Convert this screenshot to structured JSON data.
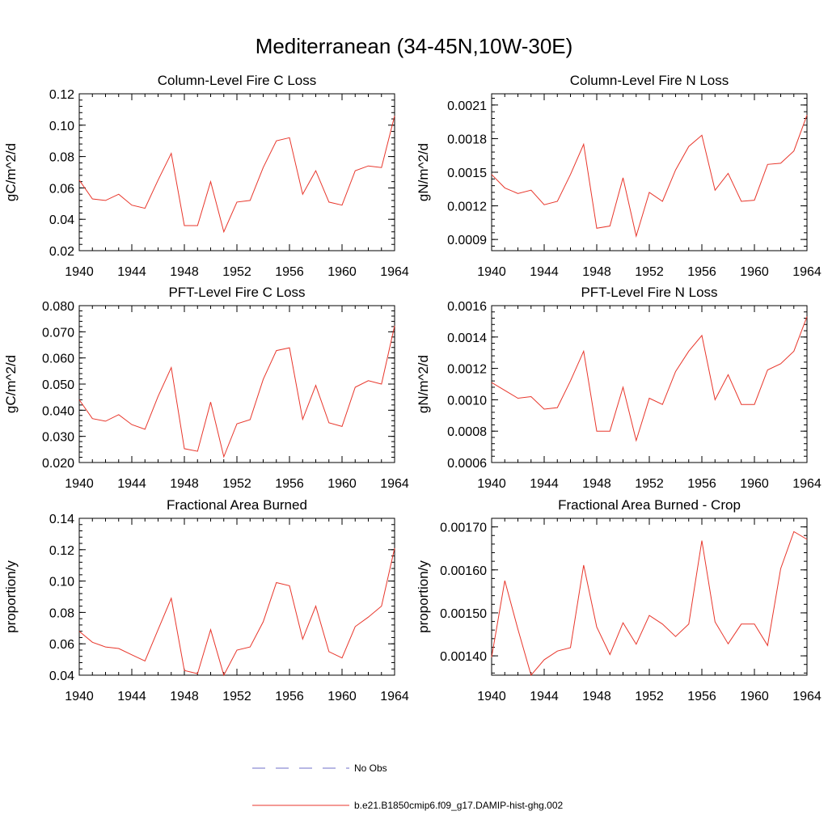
{
  "figure_title": "Mediterranean (34-45N,10W-30E)",
  "legend": {
    "items": [
      {
        "label": "No Obs",
        "color": "#6f6fc9",
        "style": "dashed"
      },
      {
        "label": "b.e21.B1850cmip6.f09_g17.DAMIP-hist-ghg.002",
        "color": "#e8362b",
        "style": "solid"
      }
    ]
  },
  "chart_data": [
    {
      "type": "line",
      "title": "Column-Level Fire C Loss",
      "ylabel": "gC/m^2/d",
      "xlim": [
        1940,
        1964
      ],
      "ylim": [
        0.02,
        0.12
      ],
      "xticks": [
        1940,
        1944,
        1948,
        1952,
        1956,
        1960,
        1964
      ],
      "xtick_labels": [
        "1940",
        "1944",
        "1948",
        "1952",
        "1956",
        "1960",
        "1964"
      ],
      "yticks": [
        0.02,
        0.04,
        0.06,
        0.08,
        0.1,
        0.12
      ],
      "ytick_labels": [
        "0.02",
        "0.04",
        "0.06",
        "0.08",
        "0.10",
        "0.12"
      ],
      "x": [
        1940,
        1941,
        1942,
        1943,
        1944,
        1945,
        1946,
        1947,
        1948,
        1949,
        1950,
        1951,
        1952,
        1953,
        1954,
        1955,
        1956,
        1957,
        1958,
        1959,
        1960,
        1961,
        1962,
        1963,
        1964
      ],
      "series": [
        {
          "color": "#e8362b",
          "values": [
            0.065,
            0.053,
            0.052,
            0.056,
            0.049,
            0.047,
            0.065,
            0.082,
            0.036,
            0.036,
            0.064,
            0.032,
            0.051,
            0.052,
            0.073,
            0.09,
            0.092,
            0.056,
            0.071,
            0.051,
            0.049,
            0.071,
            0.074,
            0.073,
            0.106
          ]
        }
      ]
    },
    {
      "type": "line",
      "title": "Column-Level Fire N Loss",
      "ylabel": "gN/m^2/d",
      "xlim": [
        1940,
        1964
      ],
      "ylim": [
        0.0008,
        0.0022
      ],
      "xticks": [
        1940,
        1944,
        1948,
        1952,
        1956,
        1960,
        1964
      ],
      "xtick_labels": [
        "1940",
        "1944",
        "1948",
        "1952",
        "1956",
        "1960",
        "1964"
      ],
      "yticks": [
        0.0009,
        0.0012,
        0.0015,
        0.0018,
        0.0021
      ],
      "ytick_labels": [
        "0.0009",
        "0.0012",
        "0.0015",
        "0.0018",
        "0.0021"
      ],
      "x": [
        1940,
        1941,
        1942,
        1943,
        1944,
        1945,
        1946,
        1947,
        1948,
        1949,
        1950,
        1951,
        1952,
        1953,
        1954,
        1955,
        1956,
        1957,
        1958,
        1959,
        1960,
        1961,
        1962,
        1963,
        1964
      ],
      "series": [
        {
          "color": "#e8362b",
          "values": [
            0.00148,
            0.00136,
            0.00131,
            0.00134,
            0.00121,
            0.00124,
            0.00148,
            0.00175,
            0.001,
            0.00102,
            0.00145,
            0.00093,
            0.00132,
            0.00124,
            0.00152,
            0.00173,
            0.00183,
            0.00134,
            0.00149,
            0.00124,
            0.00125,
            0.00157,
            0.00158,
            0.00169,
            0.00201
          ]
        }
      ]
    },
    {
      "type": "line",
      "title": "PFT-Level Fire C Loss",
      "ylabel": "gC/m^2/d",
      "xlim": [
        1940,
        1964
      ],
      "ylim": [
        0.02,
        0.08
      ],
      "xticks": [
        1940,
        1944,
        1948,
        1952,
        1956,
        1960,
        1964
      ],
      "xtick_labels": [
        "1940",
        "1944",
        "1948",
        "1952",
        "1956",
        "1960",
        "1964"
      ],
      "yticks": [
        0.02,
        0.03,
        0.04,
        0.05,
        0.06,
        0.07,
        0.08
      ],
      "ytick_labels": [
        "0.020",
        "0.030",
        "0.040",
        "0.050",
        "0.060",
        "0.070",
        "0.080"
      ],
      "x": [
        1940,
        1941,
        1942,
        1943,
        1944,
        1945,
        1946,
        1947,
        1948,
        1949,
        1950,
        1951,
        1952,
        1953,
        1954,
        1955,
        1956,
        1957,
        1958,
        1959,
        1960,
        1961,
        1962,
        1963,
        1964
      ],
      "series": [
        {
          "color": "#e8362b",
          "values": [
            0.044,
            0.0368,
            0.0358,
            0.0383,
            0.0345,
            0.0327,
            0.0453,
            0.0563,
            0.0253,
            0.0243,
            0.0431,
            0.0222,
            0.0348,
            0.0364,
            0.0518,
            0.0628,
            0.0639,
            0.0365,
            0.0495,
            0.0352,
            0.0338,
            0.0488,
            0.0513,
            0.05,
            0.0723
          ]
        }
      ]
    },
    {
      "type": "line",
      "title": "PFT-Level Fire N Loss",
      "ylabel": "gN/m^2/d",
      "xlim": [
        1940,
        1964
      ],
      "ylim": [
        0.0006,
        0.0016
      ],
      "xticks": [
        1940,
        1944,
        1948,
        1952,
        1956,
        1960,
        1964
      ],
      "xtick_labels": [
        "1940",
        "1944",
        "1948",
        "1952",
        "1956",
        "1960",
        "1964"
      ],
      "yticks": [
        0.0006,
        0.0008,
        0.001,
        0.0012,
        0.0014,
        0.0016
      ],
      "ytick_labels": [
        "0.0006",
        "0.0008",
        "0.0010",
        "0.0012",
        "0.0014",
        "0.0016"
      ],
      "x": [
        1940,
        1941,
        1942,
        1943,
        1944,
        1945,
        1946,
        1947,
        1948,
        1949,
        1950,
        1951,
        1952,
        1953,
        1954,
        1955,
        1956,
        1957,
        1958,
        1959,
        1960,
        1961,
        1962,
        1963,
        1964
      ],
      "series": [
        {
          "color": "#e8362b",
          "values": [
            0.00111,
            0.00106,
            0.00101,
            0.00102,
            0.00094,
            0.00095,
            0.00112,
            0.00131,
            0.0008,
            0.0008,
            0.00108,
            0.00074,
            0.00101,
            0.00097,
            0.00118,
            0.00131,
            0.00141,
            0.001,
            0.00116,
            0.00097,
            0.00097,
            0.00119,
            0.00123,
            0.00131,
            0.00153
          ]
        }
      ]
    },
    {
      "type": "line",
      "title": "Fractional Area Burned",
      "ylabel": "proportion/y",
      "xlim": [
        1940,
        1964
      ],
      "ylim": [
        0.04,
        0.14
      ],
      "xticks": [
        1940,
        1944,
        1948,
        1952,
        1956,
        1960,
        1964
      ],
      "xtick_labels": [
        "1940",
        "1944",
        "1948",
        "1952",
        "1956",
        "1960",
        "1964"
      ],
      "yticks": [
        0.04,
        0.06,
        0.08,
        0.1,
        0.12,
        0.14
      ],
      "ytick_labels": [
        "0.04",
        "0.06",
        "0.08",
        "0.10",
        "0.12",
        "0.14"
      ],
      "x": [
        1940,
        1941,
        1942,
        1943,
        1944,
        1945,
        1946,
        1947,
        1948,
        1949,
        1950,
        1951,
        1952,
        1953,
        1954,
        1955,
        1956,
        1957,
        1958,
        1959,
        1960,
        1961,
        1962,
        1963,
        1964
      ],
      "series": [
        {
          "color": "#e8362b",
          "values": [
            0.068,
            0.061,
            0.058,
            0.057,
            0.053,
            0.049,
            0.069,
            0.089,
            0.043,
            0.041,
            0.069,
            0.04,
            0.056,
            0.058,
            0.074,
            0.099,
            0.097,
            0.063,
            0.084,
            0.055,
            0.051,
            0.071,
            0.077,
            0.084,
            0.121
          ]
        }
      ]
    },
    {
      "type": "line",
      "title": "Fractional Area Burned - Crop",
      "ylabel": "proportion/y",
      "xlim": [
        1940,
        1964
      ],
      "ylim": [
        0.001355,
        0.00172
      ],
      "xticks": [
        1940,
        1944,
        1948,
        1952,
        1956,
        1960,
        1964
      ],
      "xtick_labels": [
        "1940",
        "1944",
        "1948",
        "1952",
        "1956",
        "1960",
        "1964"
      ],
      "yticks": [
        0.0014,
        0.0015,
        0.0016,
        0.0017
      ],
      "ytick_labels": [
        "0.00140",
        "0.00150",
        "0.00160",
        "0.00170"
      ],
      "x": [
        1940,
        1941,
        1942,
        1943,
        1944,
        1945,
        1946,
        1947,
        1948,
        1949,
        1950,
        1951,
        1952,
        1953,
        1954,
        1955,
        1956,
        1957,
        1958,
        1959,
        1960,
        1961,
        1962,
        1963,
        1964
      ],
      "series": [
        {
          "color": "#e8362b",
          "values": [
            0.001397,
            0.001575,
            0.001462,
            0.001355,
            0.001391,
            0.001411,
            0.001419,
            0.001611,
            0.001467,
            0.001403,
            0.001477,
            0.001427,
            0.001494,
            0.001474,
            0.001445,
            0.001474,
            0.001668,
            0.001479,
            0.001428,
            0.001474,
            0.001474,
            0.001424,
            0.001603,
            0.001689,
            0.001671
          ]
        }
      ]
    }
  ]
}
